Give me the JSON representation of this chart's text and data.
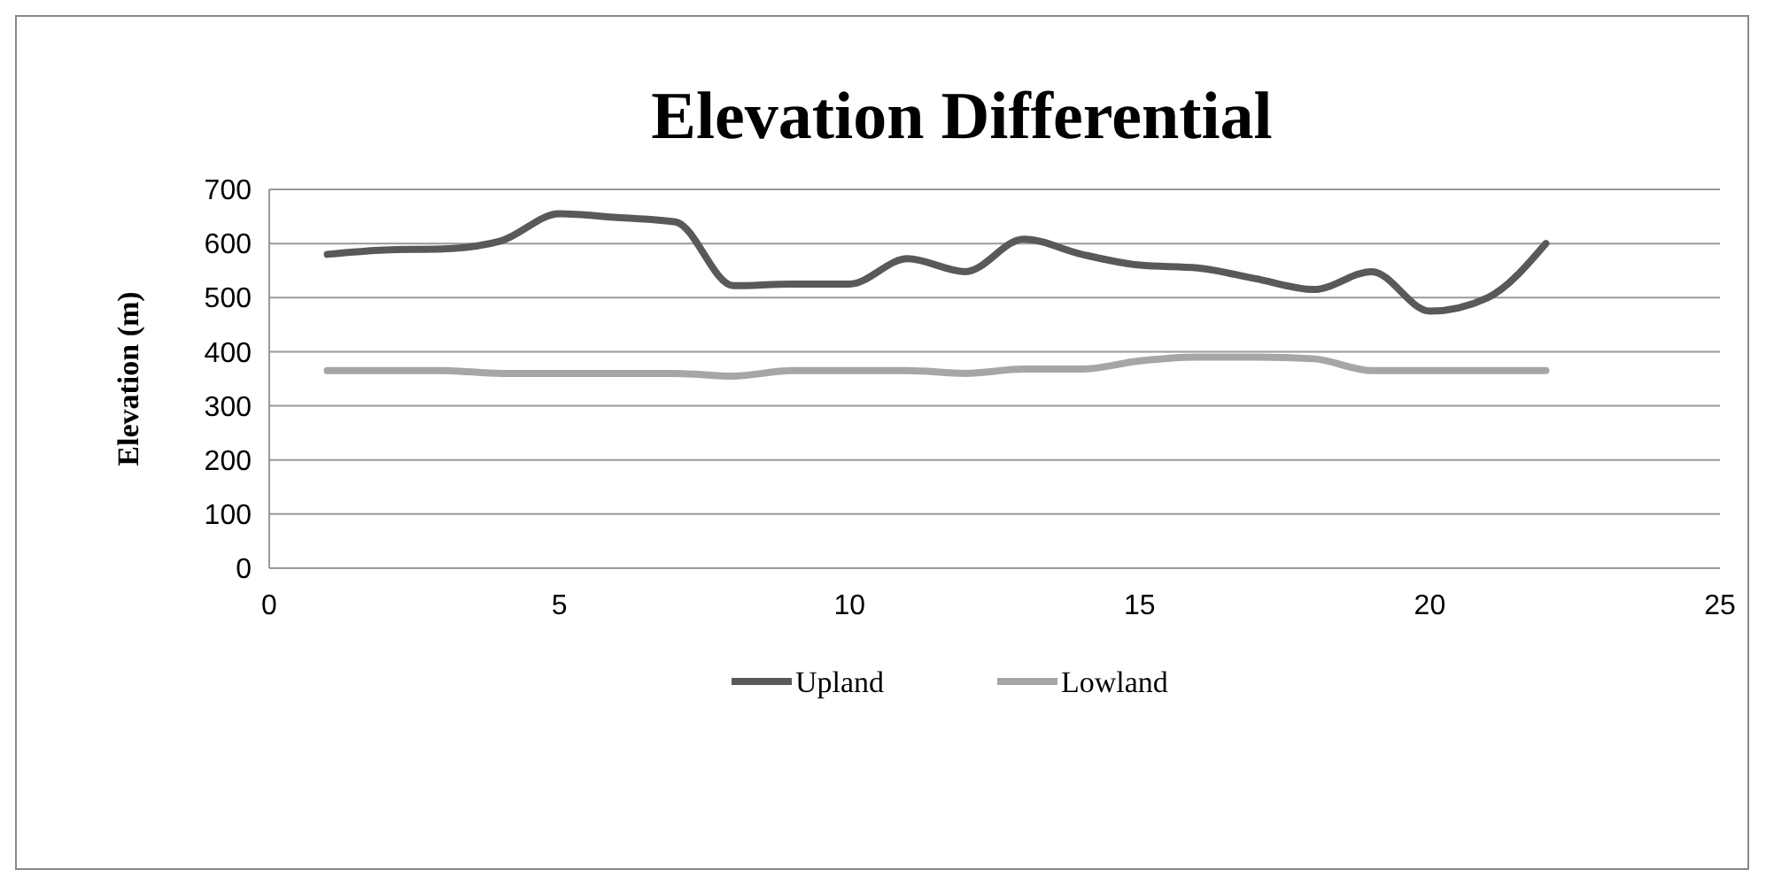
{
  "chart_data": {
    "type": "line",
    "title": "Elevation Differential",
    "ylabel": "Elevation (m)",
    "x": [
      1,
      2,
      3,
      4,
      5,
      6,
      7,
      8,
      9,
      10,
      11,
      12,
      13,
      14,
      15,
      16,
      17,
      18,
      19,
      20,
      21,
      22
    ],
    "series": [
      {
        "name": "Upland",
        "color": "#595959",
        "values": [
          580,
          588,
          590,
          605,
          655,
          648,
          640,
          522,
          525,
          525,
          572,
          548,
          608,
          580,
          560,
          555,
          535,
          515,
          548,
          475,
          500,
          600
        ]
      },
      {
        "name": "Lowland",
        "color": "#a6a6a6",
        "values": [
          365,
          365,
          365,
          360,
          360,
          360,
          360,
          355,
          365,
          365,
          365,
          360,
          368,
          368,
          383,
          390,
          390,
          387,
          365,
          365,
          365,
          365
        ]
      }
    ],
    "xlim": [
      0,
      25
    ],
    "xticks": [
      0,
      5,
      10,
      15,
      20,
      25
    ],
    "ylim": [
      0,
      700
    ],
    "yticks": [
      0,
      100,
      200,
      300,
      400,
      500,
      600,
      700
    ],
    "grid": "y",
    "legend": "bottom",
    "marker": "none",
    "line_style": "solid"
  }
}
